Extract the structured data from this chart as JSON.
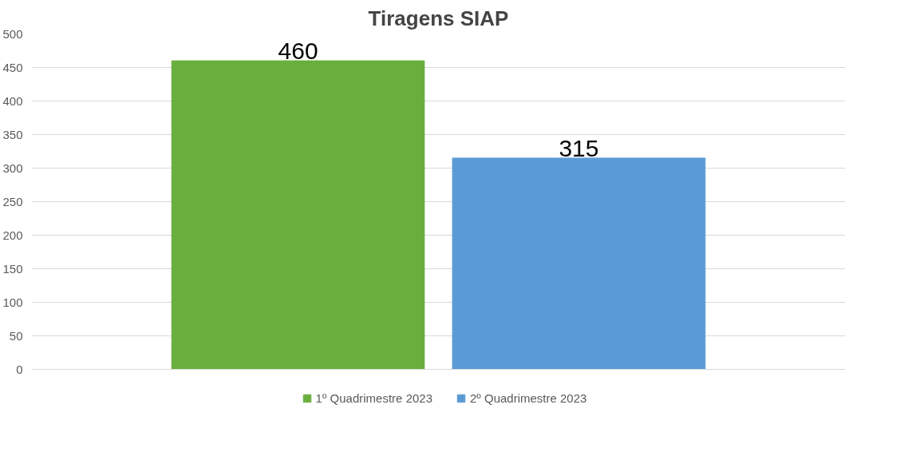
{
  "chart_data": {
    "type": "bar",
    "title": "Tiragens SIAP",
    "categories": [
      null
    ],
    "series": [
      {
        "name": "1º Quadrimestre 2023",
        "color": "#6aae3e",
        "values": [
          460
        ]
      },
      {
        "name": "2º Quadrimestre 2023",
        "color": "#5b9bd5",
        "values": [
          315
        ]
      }
    ],
    "ylim": [
      0,
      500
    ],
    "yticks": [
      0,
      50,
      100,
      150,
      200,
      250,
      300,
      350,
      400,
      450,
      500
    ],
    "grid": "y",
    "legend": "bottom",
    "data_labels": true,
    "tick_labels": "y"
  }
}
